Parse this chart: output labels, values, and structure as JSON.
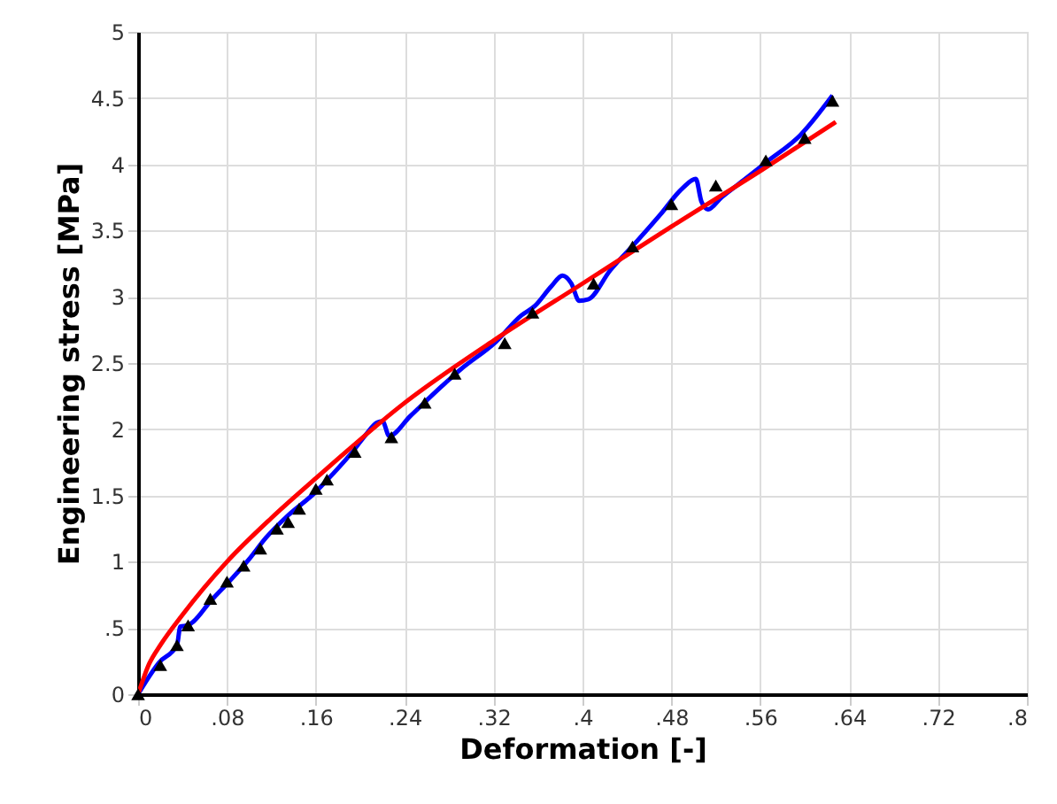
{
  "chart_data": {
    "type": "line",
    "xlabel": "Deformation [-]",
    "ylabel": "Engineering stress [MPa]",
    "xlim": [
      0,
      0.8
    ],
    "ylim": [
      0,
      5
    ],
    "xticks": [
      0,
      {
        "value": 0.08,
        "label": ".08"
      },
      {
        "value": 0.16,
        "label": ".16"
      },
      {
        "value": 0.24,
        "label": ".24"
      },
      {
        "value": 0.32,
        "label": ".32"
      },
      {
        "value": 0.4,
        "label": ".4"
      },
      {
        "value": 0.48,
        "label": ".48"
      },
      {
        "value": 0.56,
        "label": ".56"
      },
      {
        "value": 0.64,
        "label": ".64"
      },
      {
        "value": 0.72,
        "label": ".72"
      },
      {
        "value": 0.8,
        "label": ".8"
      }
    ],
    "yticks": [
      0,
      {
        "value": 0.5,
        "label": ".5"
      },
      1,
      1.5,
      2,
      2.5,
      3,
      3.5,
      4,
      4.5,
      5
    ],
    "grid": true,
    "series": [
      {
        "type": "line",
        "color": "#0000ff",
        "marker": "none",
        "x": [
          0,
          0.019,
          0.035,
          0.038,
          0.045,
          0.05,
          0.065,
          0.083,
          0.1,
          0.115,
          0.135,
          0.159,
          0.175,
          0.194,
          0.205,
          0.215,
          0.22,
          0.226,
          0.245,
          0.274,
          0.29,
          0.322,
          0.345,
          0.357,
          0.372,
          0.382,
          0.39,
          0.397,
          0.405,
          0.425,
          0.449,
          0.47,
          0.49,
          0.502,
          0.507,
          0.513,
          0.525,
          0.545,
          0.566,
          0.596,
          0.625
        ],
        "values": [
          0,
          0.24,
          0.37,
          0.51,
          0.52,
          0.55,
          0.7,
          0.86,
          1.02,
          1.18,
          1.35,
          1.52,
          1.66,
          1.84,
          1.96,
          2.05,
          2.06,
          1.95,
          2.1,
          2.33,
          2.45,
          2.66,
          2.86,
          2.93,
          3.08,
          3.16,
          3.1,
          2.97,
          2.98,
          3.2,
          3.42,
          3.62,
          3.82,
          3.89,
          3.72,
          3.66,
          3.75,
          3.88,
          4.02,
          4.22,
          4.52
        ]
      },
      {
        "type": "scatter",
        "color": "#000000",
        "marker": "triangle",
        "x": [
          0,
          0.02,
          0.035,
          0.045,
          0.065,
          0.08,
          0.095,
          0.11,
          0.125,
          0.135,
          0.145,
          0.16,
          0.17,
          0.195,
          0.228,
          0.258,
          0.285,
          0.33,
          0.355,
          0.41,
          0.445,
          0.48,
          0.52,
          0.565,
          0.6,
          0.625
        ],
        "values": [
          0,
          0.22,
          0.37,
          0.52,
          0.72,
          0.85,
          0.97,
          1.1,
          1.25,
          1.3,
          1.4,
          1.55,
          1.62,
          1.83,
          1.94,
          2.2,
          2.42,
          2.65,
          2.88,
          3.1,
          3.38,
          3.7,
          3.84,
          4.03,
          4.2,
          4.48
        ]
      },
      {
        "type": "line",
        "color": "#ff0000",
        "marker": "none",
        "x": [
          0,
          0.01,
          0.02,
          0.04,
          0.08,
          0.12,
          0.16,
          0.24,
          0.32,
          0.4,
          0.48,
          0.56,
          0.628
        ],
        "values": [
          0,
          0.23,
          0.37,
          0.6,
          1.0,
          1.33,
          1.63,
          2.2,
          2.67,
          3.1,
          3.53,
          3.95,
          4.32
        ]
      }
    ]
  }
}
